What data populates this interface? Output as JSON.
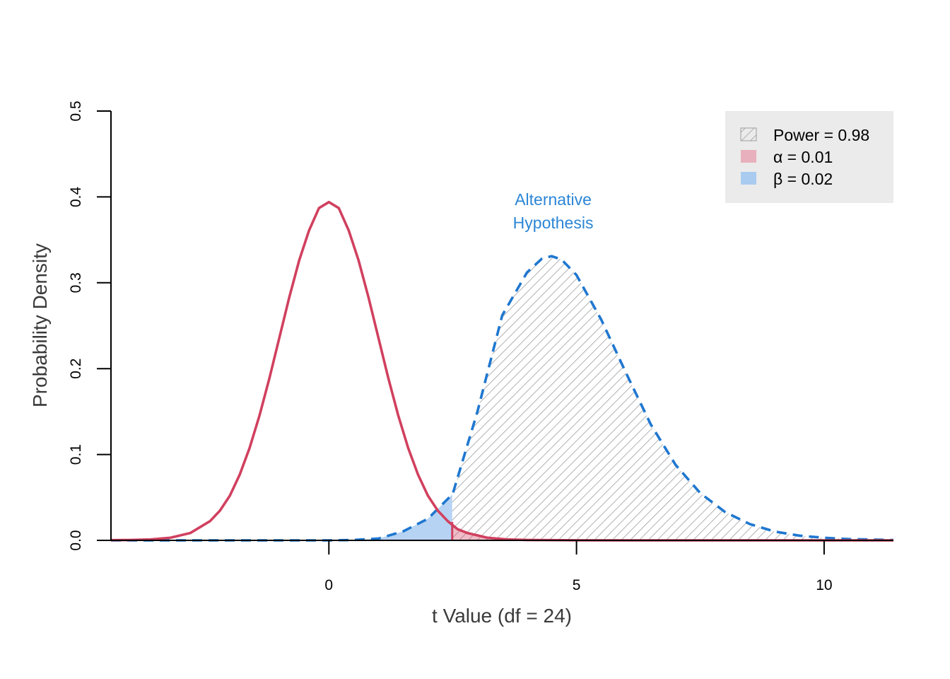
{
  "chart_data": {
    "type": "line",
    "title": "",
    "xlabel": "t Value (df = 24)",
    "ylabel": "Probability Density",
    "xlim": [
      -4.4,
      11.4
    ],
    "ylim": [
      0,
      0.5
    ],
    "x_ticks": [
      "0",
      "5",
      "10"
    ],
    "x_tick_values": [
      0,
      5,
      10
    ],
    "y_ticks": [
      "0.0",
      "0.1",
      "0.2",
      "0.3",
      "0.4",
      "0.5"
    ],
    "y_tick_values": [
      0,
      0.1,
      0.2,
      0.3,
      0.4,
      0.5
    ],
    "grid": false,
    "critical_value": 2.49,
    "series": [
      {
        "role": "null",
        "color": "#D1405F",
        "line_style": "solid",
        "x": [
          -4.4,
          -4.0,
          -3.6,
          -3.2,
          -2.8,
          -2.4,
          -2.2,
          -2.0,
          -1.8,
          -1.6,
          -1.4,
          -1.2,
          -1.0,
          -0.8,
          -0.6,
          -0.4,
          -0.2,
          0.0,
          0.2,
          0.4,
          0.6,
          0.8,
          1.0,
          1.2,
          1.4,
          1.6,
          1.8,
          2.0,
          2.2,
          2.4,
          2.6,
          2.8,
          3.2,
          3.6,
          4.0,
          5.0,
          6.0,
          8.0,
          10.0,
          11.4
        ],
        "y": [
          0.0003,
          0.0005,
          0.0011,
          0.0031,
          0.0085,
          0.0224,
          0.0346,
          0.052,
          0.0766,
          0.1078,
          0.1456,
          0.189,
          0.236,
          0.283,
          0.326,
          0.361,
          0.387,
          0.394,
          0.387,
          0.361,
          0.326,
          0.283,
          0.236,
          0.189,
          0.1456,
          0.1078,
          0.0766,
          0.052,
          0.0346,
          0.0224,
          0.013,
          0.0085,
          0.0031,
          0.0011,
          0.0005,
          0.0001,
          0.0,
          0.0,
          0.0,
          0.0
        ]
      },
      {
        "role": "alternative",
        "color": "#1F77D0",
        "line_style": "dashed",
        "x": [
          -4.4,
          -1.0,
          0.0,
          0.5,
          1.0,
          1.5,
          2.0,
          2.5,
          3.0,
          3.5,
          4.0,
          4.3,
          4.5,
          4.7,
          5.0,
          5.5,
          6.0,
          6.5,
          7.0,
          7.5,
          8.0,
          8.5,
          9.0,
          9.5,
          10.0,
          10.5,
          11.4
        ],
        "y": [
          0.0,
          0.0,
          0.0,
          0.0005,
          0.0021,
          0.0105,
          0.0252,
          0.054,
          0.15,
          0.262,
          0.312,
          0.328,
          0.331,
          0.327,
          0.309,
          0.257,
          0.195,
          0.135,
          0.088,
          0.055,
          0.033,
          0.019,
          0.0103,
          0.0055,
          0.003,
          0.0015,
          0.0004
        ]
      }
    ],
    "shaded_regions": [
      {
        "label": "Power",
        "fill": "hatched",
        "color": "#9E9E9E",
        "under": "alternative",
        "from": 2.49,
        "to": 11.4
      },
      {
        "label": "α",
        "fill": "solid",
        "color": "#D1405F",
        "opacity": 0.35,
        "under": "null",
        "from": 2.49,
        "to": 11.4
      },
      {
        "label": "β",
        "fill": "solid",
        "color": "#6FA8E8",
        "opacity": 0.5,
        "under": "alternative",
        "from": -4.4,
        "to": 2.49
      }
    ],
    "legend": {
      "placement": "top-right",
      "background": "#EBEBEB",
      "entries": [
        {
          "symbol": "Power",
          "value": "0.98",
          "swatch": "hatched",
          "color": "#9E9E9E"
        },
        {
          "symbol": "α",
          "value": "0.01",
          "swatch": "solid",
          "color": "#E8B0BC"
        },
        {
          "symbol": "β",
          "value": "0.02",
          "swatch": "solid",
          "color": "#A9CBF0"
        }
      ]
    },
    "annotations": [
      {
        "lines": [
          "Alternative",
          " Hypothesis"
        ],
        "x": 4.5,
        "color": "#2B86D6"
      }
    ]
  }
}
